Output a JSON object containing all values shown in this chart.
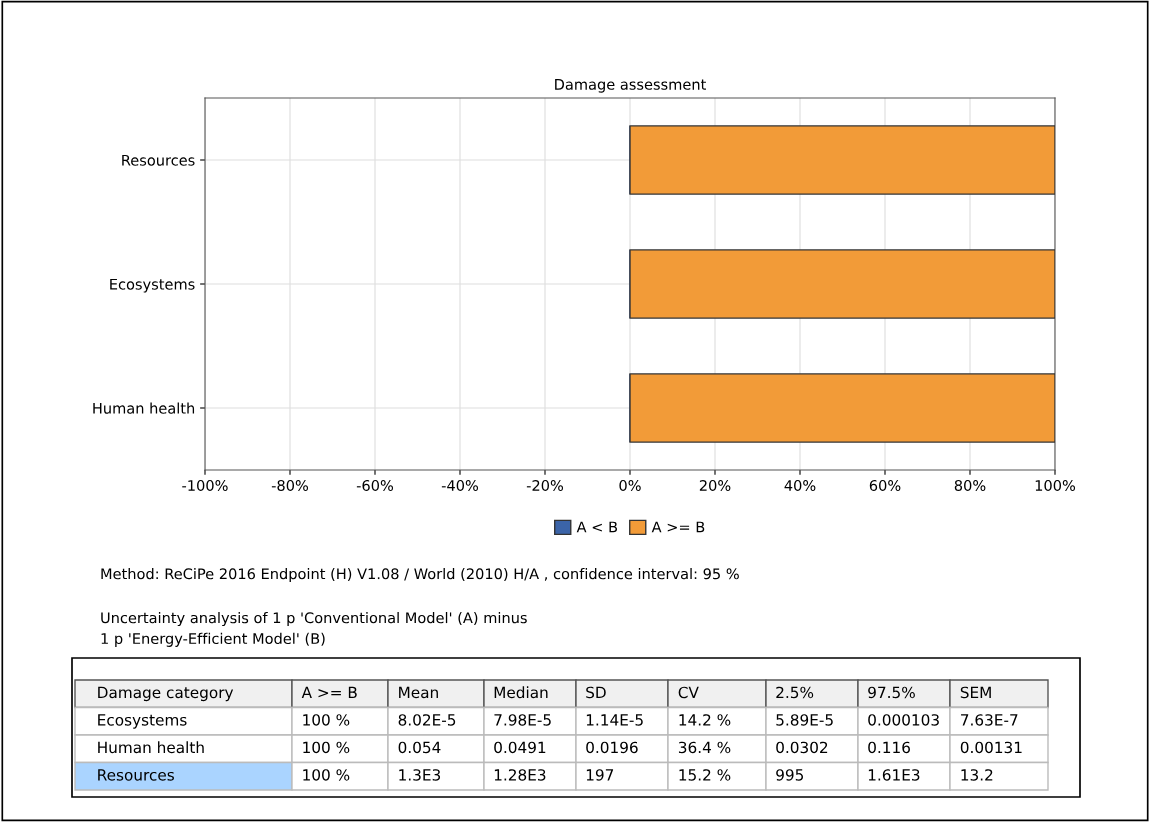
{
  "chart_data": {
    "type": "bar",
    "orientation": "horizontal",
    "title": "Damage assessment",
    "categories": [
      "Resources",
      "Ecosystems",
      "Human health"
    ],
    "series": [
      {
        "name": "A < B",
        "color": "#3b64a8",
        "values": [
          0,
          0,
          0
        ]
      },
      {
        "name": "A >= B",
        "color": "#f29b38",
        "values": [
          100,
          100,
          100
        ]
      }
    ],
    "xlim": [
      -100,
      100
    ],
    "xticks": [
      {
        "value": -100,
        "label": "-100%"
      },
      {
        "value": -80,
        "label": "-80%"
      },
      {
        "value": -60,
        "label": "-60%"
      },
      {
        "value": -40,
        "label": "-40%"
      },
      {
        "value": -20,
        "label": "-20%"
      },
      {
        "value": 0,
        "label": "0%"
      },
      {
        "value": 20,
        "label": "20%"
      },
      {
        "value": 40,
        "label": "40%"
      },
      {
        "value": 60,
        "label": "60%"
      },
      {
        "value": 80,
        "label": "80%"
      },
      {
        "value": 100,
        "label": "100%"
      }
    ],
    "grid": true,
    "legend": "bottom",
    "annotations": [
      "Method: ReCiPe 2016 Endpoint (H) V1.08 / World (2010) H/A , confidence interval: 95 %",
      "Uncertainty analysis of 1 p 'Conventional Model' (A) minus\n1 p 'Energy-Efficient Model' (B)",
      "Damage category",
      "A >= B",
      "Mean",
      "Median",
      "SD",
      "CV",
      "2.5%",
      "97.5%",
      "SEM",
      "Ecosystems",
      "100 %",
      "8.02E-5",
      "7.98E-5",
      "1.14E-5",
      "14.2 %",
      "5.89E-5",
      "0.000103",
      "7.63E-7",
      "Human health",
      "100 %",
      "0.054",
      "0.0491",
      "0.0196",
      "36.4 %",
      "0.0302",
      "0.116",
      "0.00131",
      "Resources",
      "100 %",
      "1.3E3",
      "1.28E3",
      "197",
      "15.2 %",
      "995",
      "1.61E3",
      "13.2"
    ]
  }
}
